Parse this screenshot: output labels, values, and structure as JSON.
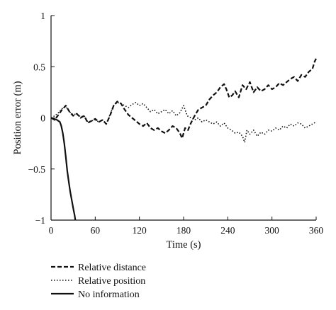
{
  "chart_data": {
    "type": "line",
    "xlabel": "Time (s)",
    "ylabel": "Position error (m)",
    "xlim": [
      0,
      360
    ],
    "ylim": [
      -1,
      1
    ],
    "xticks": [
      0,
      60,
      120,
      180,
      240,
      300,
      360
    ],
    "yticks": [
      1,
      0.5,
      0,
      -0.5,
      -1
    ],
    "xtick_labels": [
      "0",
      "60",
      "120",
      "180",
      "240",
      "300",
      "360"
    ],
    "ytick_labels": [
      "1",
      "0.5",
      "0",
      "−0.5",
      "−1"
    ],
    "grid": false,
    "legend_position": "bottom-left",
    "series": [
      {
        "name": "Relative distance",
        "style": "dashed",
        "x": [
          0,
          5,
          10,
          15,
          20,
          25,
          30,
          35,
          40,
          45,
          50,
          55,
          60,
          65,
          70,
          75,
          80,
          85,
          90,
          95,
          100,
          105,
          110,
          115,
          120,
          125,
          130,
          135,
          140,
          145,
          150,
          155,
          160,
          165,
          170,
          175,
          178,
          182,
          186,
          190,
          195,
          200,
          205,
          210,
          215,
          220,
          225,
          230,
          235,
          238,
          242,
          246,
          250,
          255,
          260,
          265,
          270,
          275,
          280,
          285,
          290,
          295,
          300,
          305,
          310,
          315,
          320,
          325,
          330,
          335,
          340,
          345,
          350,
          355,
          358,
          360
        ],
        "y": [
          0,
          -0.02,
          0.03,
          0.08,
          0.12,
          0.06,
          0.02,
          0.04,
          0,
          0.02,
          -0.05,
          -0.03,
          -0.01,
          -0.04,
          -0.02,
          -0.06,
          0.02,
          0.12,
          0.16,
          0.14,
          0.08,
          0.03,
          0,
          -0.03,
          -0.06,
          -0.08,
          -0.05,
          -0.1,
          -0.12,
          -0.1,
          -0.13,
          -0.15,
          -0.12,
          -0.08,
          -0.1,
          -0.15,
          -0.2,
          -0.1,
          -0.12,
          -0.05,
          0.02,
          0.08,
          0.1,
          0.12,
          0.18,
          0.22,
          0.25,
          0.3,
          0.33,
          0.28,
          0.2,
          0.22,
          0.26,
          0.2,
          0.32,
          0.28,
          0.35,
          0.25,
          0.3,
          0.26,
          0.28,
          0.32,
          0.28,
          0.3,
          0.34,
          0.32,
          0.35,
          0.38,
          0.4,
          0.36,
          0.42,
          0.4,
          0.45,
          0.48,
          0.55,
          0.58
        ]
      },
      {
        "name": "Relative position",
        "style": "dotted",
        "x": [
          0,
          5,
          10,
          15,
          20,
          25,
          30,
          35,
          40,
          45,
          50,
          55,
          60,
          65,
          70,
          75,
          80,
          85,
          90,
          95,
          100,
          105,
          110,
          115,
          120,
          125,
          130,
          135,
          140,
          145,
          150,
          155,
          160,
          165,
          170,
          175,
          180,
          185,
          190,
          195,
          200,
          205,
          210,
          215,
          220,
          225,
          230,
          235,
          240,
          245,
          250,
          255,
          260,
          263,
          266,
          270,
          275,
          280,
          285,
          290,
          295,
          300,
          305,
          310,
          315,
          320,
          325,
          330,
          335,
          340,
          345,
          350,
          355,
          360
        ],
        "y": [
          0,
          0.02,
          0.05,
          0.09,
          0.11,
          0.06,
          0.03,
          0.04,
          0.01,
          0.02,
          -0.04,
          -0.03,
          -0.02,
          -0.04,
          -0.02,
          -0.06,
          0.03,
          0.12,
          0.15,
          0.14,
          0.12,
          0.1,
          0.13,
          0.15,
          0.12,
          0.14,
          0.1,
          0.06,
          0.08,
          0.04,
          0.06,
          0.08,
          0.04,
          0.07,
          0.02,
          0.05,
          0.12,
          0.02,
          0,
          -0.02,
          0,
          -0.04,
          -0.02,
          -0.04,
          -0.06,
          -0.04,
          -0.08,
          -0.05,
          -0.1,
          -0.12,
          -0.15,
          -0.14,
          -0.18,
          -0.24,
          -0.12,
          -0.16,
          -0.12,
          -0.18,
          -0.14,
          -0.16,
          -0.12,
          -0.13,
          -0.1,
          -0.12,
          -0.08,
          -0.1,
          -0.06,
          -0.08,
          -0.05,
          -0.06,
          -0.1,
          -0.08,
          -0.06,
          -0.04
        ]
      },
      {
        "name": "No information",
        "style": "solid",
        "x": [
          0,
          4,
          8,
          12,
          14,
          16,
          18,
          20,
          22,
          24,
          26,
          28,
          30,
          32,
          33
        ],
        "y": [
          0,
          -0.01,
          -0.02,
          -0.04,
          -0.08,
          -0.15,
          -0.25,
          -0.38,
          -0.52,
          -0.62,
          -0.72,
          -0.8,
          -0.88,
          -0.95,
          -1
        ]
      }
    ]
  }
}
